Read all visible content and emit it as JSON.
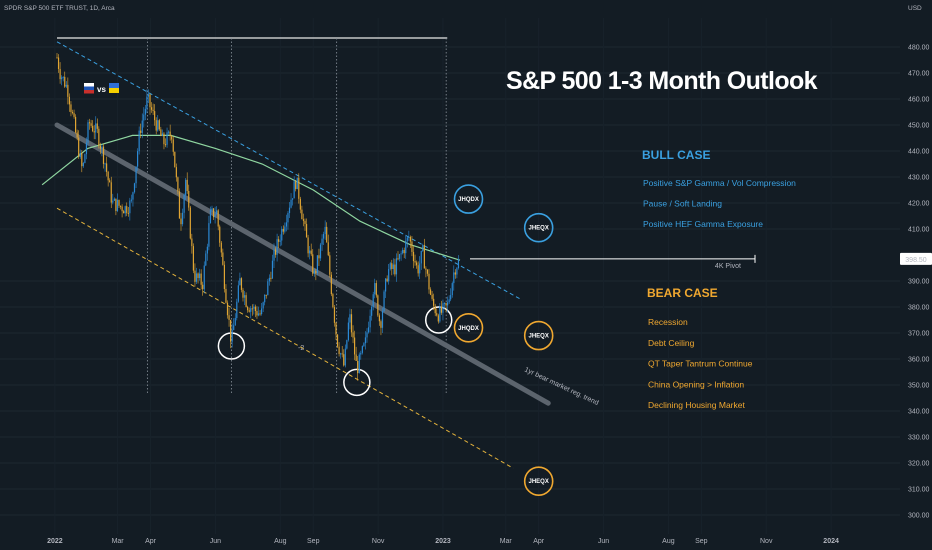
{
  "header": {
    "symbol": "SPDR S&P 500 ETF TRUST, 1D, Arca",
    "currency": "USD"
  },
  "chart_data": {
    "type": "candlestick",
    "title": "S&P 500 1-3 Month Outlook",
    "x_ticks": [
      "2022",
      "Mar",
      "Apr",
      "Jun",
      "Aug",
      "Sep",
      "Nov",
      "2023",
      "Mar",
      "Apr",
      "Jun",
      "Aug",
      "Sep",
      "Nov",
      "2024"
    ],
    "y_ticks": [
      480,
      470,
      460,
      450,
      440,
      430,
      420,
      410,
      390,
      380,
      370,
      360,
      350,
      340,
      330,
      320,
      310,
      300
    ],
    "ylim": [
      296,
      486
    ],
    "last_price_label": "398.50",
    "price_path": [
      {
        "t": "2022-01-03",
        "v": 476
      },
      {
        "t": "2022-01-06",
        "v": 470
      },
      {
        "t": "2022-01-13",
        "v": 464
      },
      {
        "t": "2022-01-20",
        "v": 448
      },
      {
        "t": "2022-01-27",
        "v": 432
      },
      {
        "t": "2022-02-02",
        "v": 451
      },
      {
        "t": "2022-02-10",
        "v": 447
      },
      {
        "t": "2022-02-17",
        "v": 436
      },
      {
        "t": "2022-02-24",
        "v": 420
      },
      {
        "t": "2022-03-08",
        "v": 418
      },
      {
        "t": "2022-03-14",
        "v": 420
      },
      {
        "t": "2022-03-22",
        "v": 448
      },
      {
        "t": "2022-03-29",
        "v": 460
      },
      {
        "t": "2022-04-05",
        "v": 452
      },
      {
        "t": "2022-04-13",
        "v": 443
      },
      {
        "t": "2022-04-21",
        "v": 447
      },
      {
        "t": "2022-04-29",
        "v": 412
      },
      {
        "t": "2022-05-04",
        "v": 429
      },
      {
        "t": "2022-05-12",
        "v": 392
      },
      {
        "t": "2022-05-20",
        "v": 389
      },
      {
        "t": "2022-05-27",
        "v": 415
      },
      {
        "t": "2022-06-02",
        "v": 417
      },
      {
        "t": "2022-06-16",
        "v": 366
      },
      {
        "t": "2022-06-24",
        "v": 390
      },
      {
        "t": "2022-07-01",
        "v": 381
      },
      {
        "t": "2022-07-14",
        "v": 377
      },
      {
        "t": "2022-07-27",
        "v": 401
      },
      {
        "t": "2022-08-05",
        "v": 413
      },
      {
        "t": "2022-08-16",
        "v": 429
      },
      {
        "t": "2022-08-26",
        "v": 405
      },
      {
        "t": "2022-09-02",
        "v": 392
      },
      {
        "t": "2022-09-12",
        "v": 410
      },
      {
        "t": "2022-09-23",
        "v": 368
      },
      {
        "t": "2022-09-30",
        "v": 357
      },
      {
        "t": "2022-10-05",
        "v": 377
      },
      {
        "t": "2022-10-12",
        "v": 356
      },
      {
        "t": "2022-10-20",
        "v": 366
      },
      {
        "t": "2022-10-28",
        "v": 389
      },
      {
        "t": "2022-11-03",
        "v": 373
      },
      {
        "t": "2022-11-10",
        "v": 394
      },
      {
        "t": "2022-11-17",
        "v": 395
      },
      {
        "t": "2022-11-30",
        "v": 407
      },
      {
        "t": "2022-12-08",
        "v": 394
      },
      {
        "t": "2022-12-13",
        "v": 401
      },
      {
        "t": "2022-12-22",
        "v": 381
      },
      {
        "t": "2022-12-28",
        "v": 377
      },
      {
        "t": "2023-01-05",
        "v": 380
      },
      {
        "t": "2023-01-12",
        "v": 395
      },
      {
        "t": "2023-01-17",
        "v": 398.5
      }
    ],
    "overlays": {
      "descending_channel_top": [
        {
          "t": "2022-01-03",
          "v": 482
        },
        {
          "t": "2023-03-15",
          "v": 383
        }
      ],
      "regression_trend": [
        {
          "t": "2022-01-03",
          "v": 450
        },
        {
          "t": "2023-04-10",
          "v": 343
        }
      ],
      "channel_bottom": [
        {
          "t": "2022-01-03",
          "v": 418
        },
        {
          "t": "2023-03-08",
          "v": 318
        }
      ],
      "ma_200": [
        {
          "t": "2021-12-20",
          "v": 427
        },
        {
          "t": "2022-02-01",
          "v": 441
        },
        {
          "t": "2022-03-15",
          "v": 446
        },
        {
          "t": "2022-04-20",
          "v": 446
        },
        {
          "t": "2022-06-01",
          "v": 441
        },
        {
          "t": "2022-07-15",
          "v": 435
        },
        {
          "t": "2022-09-01",
          "v": 425
        },
        {
          "t": "2022-10-15",
          "v": 413
        },
        {
          "t": "2022-12-01",
          "v": 404
        },
        {
          "t": "2023-01-17",
          "v": 398
        }
      ],
      "pivot_level": 398.5,
      "pivot_label": "4K Pivot",
      "trend_label": "1yr bear market reg. trend",
      "channel_label": "-2"
    },
    "annotations": {
      "flag_text": "vs",
      "bull_case": {
        "heading": "BULL CASE",
        "items": [
          "Positive S&P Gamma / Vol Compression",
          "Pause / Soft Landing",
          "Positive HEF Gamma Exposure"
        ]
      },
      "bear_case": {
        "heading": "BEAR CASE",
        "items": [
          "Recession",
          "Debt Ceiling",
          "QT Taper Tantrum Continue",
          "China Opening > Inflation",
          "Declining Housing Market"
        ]
      },
      "tickers": [
        {
          "label": "JHQDX",
          "t": "2023-01-25",
          "v": 421.5,
          "color": "#3aa0e0"
        },
        {
          "label": "JHEQX",
          "t": "2023-04-01",
          "v": 410.5,
          "color": "#3aa0e0"
        },
        {
          "label": "JHQDX",
          "t": "2023-01-25",
          "v": 372,
          "color": "#f0a830"
        },
        {
          "label": "JHEQX",
          "t": "2023-04-01",
          "v": 369,
          "color": "#f0a830"
        },
        {
          "label": "JHEQX",
          "t": "2023-04-01",
          "v": 313,
          "color": "#f0a830"
        }
      ]
    }
  }
}
